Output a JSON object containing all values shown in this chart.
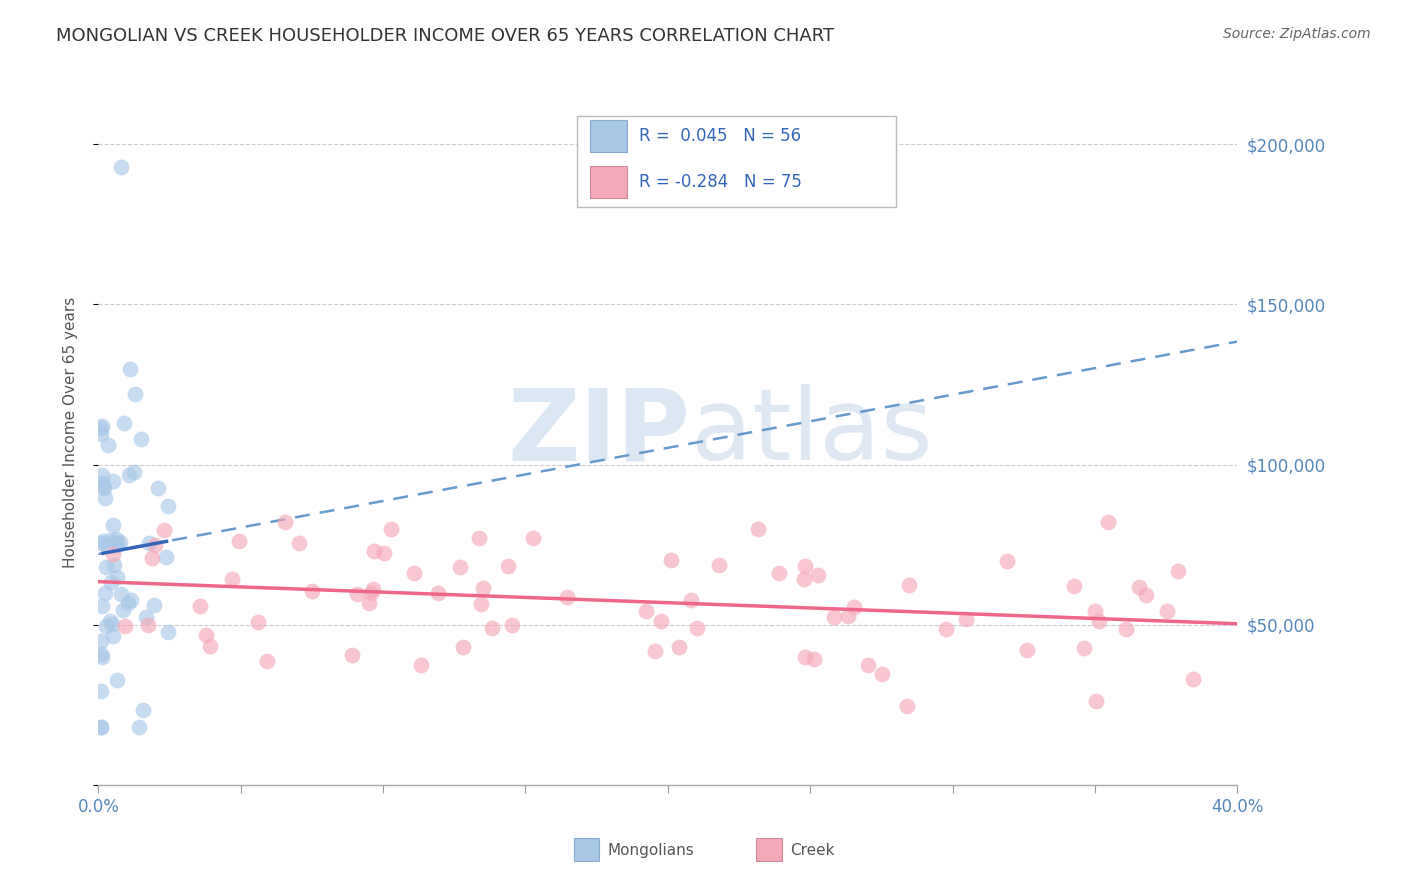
{
  "title": "MONGOLIAN VS CREEK HOUSEHOLDER INCOME OVER 65 YEARS CORRELATION CHART",
  "source": "Source: ZipAtlas.com",
  "ylabel": "Householder Income Over 65 years",
  "xlim": [
    0.0,
    0.4
  ],
  "ylim": [
    0,
    220000
  ],
  "mongolian_color": "#a8c8e8",
  "creek_color": "#f4a8b8",
  "mongolian_line_color": "#3366bb",
  "creek_line_color": "#ee6688",
  "dashed_line_color": "#6699cc",
  "mongolian_R": 0.045,
  "mongolian_N": 56,
  "creek_R": -0.284,
  "creek_N": 75,
  "background_color": "#ffffff",
  "grid_color": "#cccccc",
  "watermark_zip": "ZIP",
  "watermark_atlas": "atlas",
  "title_color": "#333333",
  "axis_label_color": "#5588bb",
  "ylabel_color": "#555555",
  "source_color": "#666666",
  "legend_text_color": "#3366bb",
  "bottom_legend_text_color": "#555555"
}
